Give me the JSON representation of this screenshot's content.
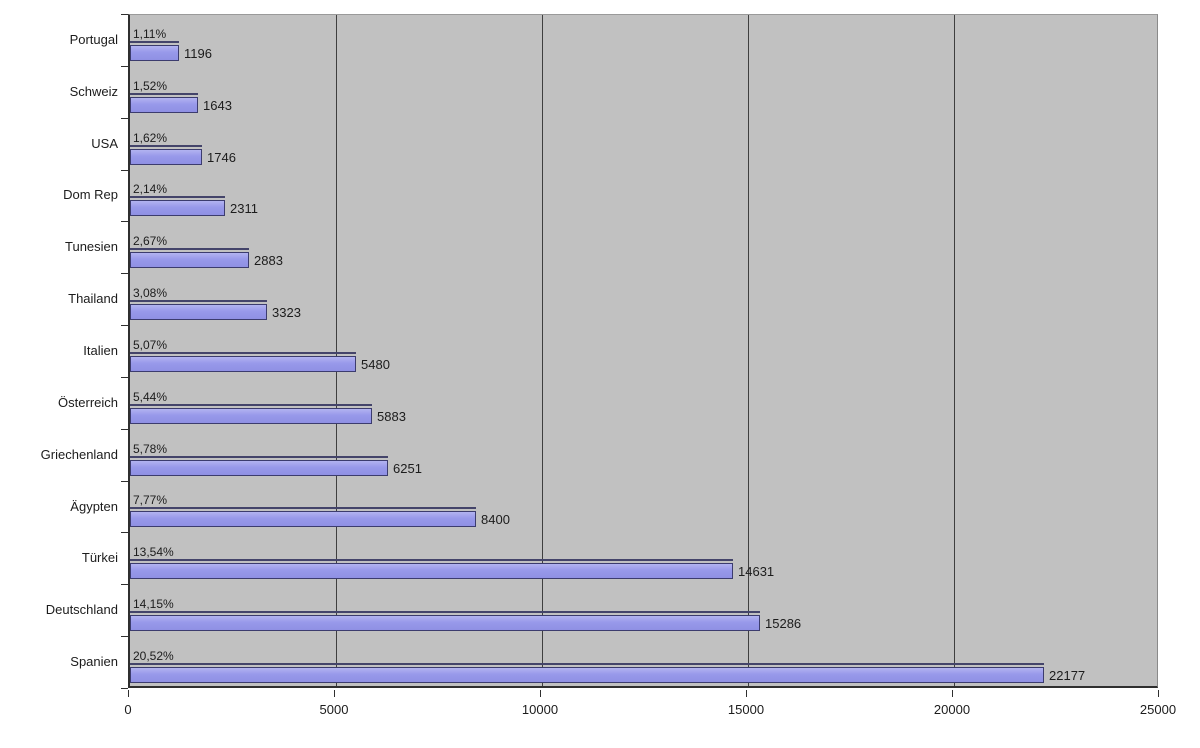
{
  "page": {
    "background": "#ffffff"
  },
  "chart_data": {
    "type": "bar",
    "orientation": "horizontal",
    "title": "",
    "xlabel": "",
    "ylabel": "",
    "xlim": [
      0,
      25000
    ],
    "x_ticks": [
      0,
      5000,
      10000,
      15000,
      20000,
      25000
    ],
    "grid": true,
    "legend": "none",
    "colors": {
      "plot_bg": "#c1c1c1",
      "bar_fill": "#9899ea",
      "bar_fill_highlight": "#b2b3f1",
      "bar_border": "#3c3c6e",
      "gridline": "#3f3f3f",
      "axis": "#2f2f2f",
      "text": "#1c1c1c",
      "page_bg": "#ffffff"
    },
    "categories": [
      "Portugal",
      "Schweiz",
      "USA",
      "Dom Rep",
      "Tunesien",
      "Thailand",
      "Italien",
      "Österreich",
      "Griechenland",
      "Ägypten",
      "Türkei",
      "Deutschland",
      "Spanien"
    ],
    "values": [
      1196,
      1643,
      1746,
      2311,
      2883,
      3323,
      5480,
      5883,
      6251,
      8400,
      14631,
      15286,
      22177
    ],
    "percent_labels": [
      "1,11%",
      "1,52%",
      "1,62%",
      "2,14%",
      "2,67%",
      "3,08%",
      "5,07%",
      "5,44%",
      "5,78%",
      "7,77%",
      "13,54%",
      "14,15%",
      "20,52%"
    ],
    "value_labels": [
      "1196",
      "1643",
      "1746",
      "2311",
      "2883",
      "3323",
      "5480",
      "5883",
      "6251",
      "8400",
      "14631",
      "15286",
      "22177"
    ]
  }
}
